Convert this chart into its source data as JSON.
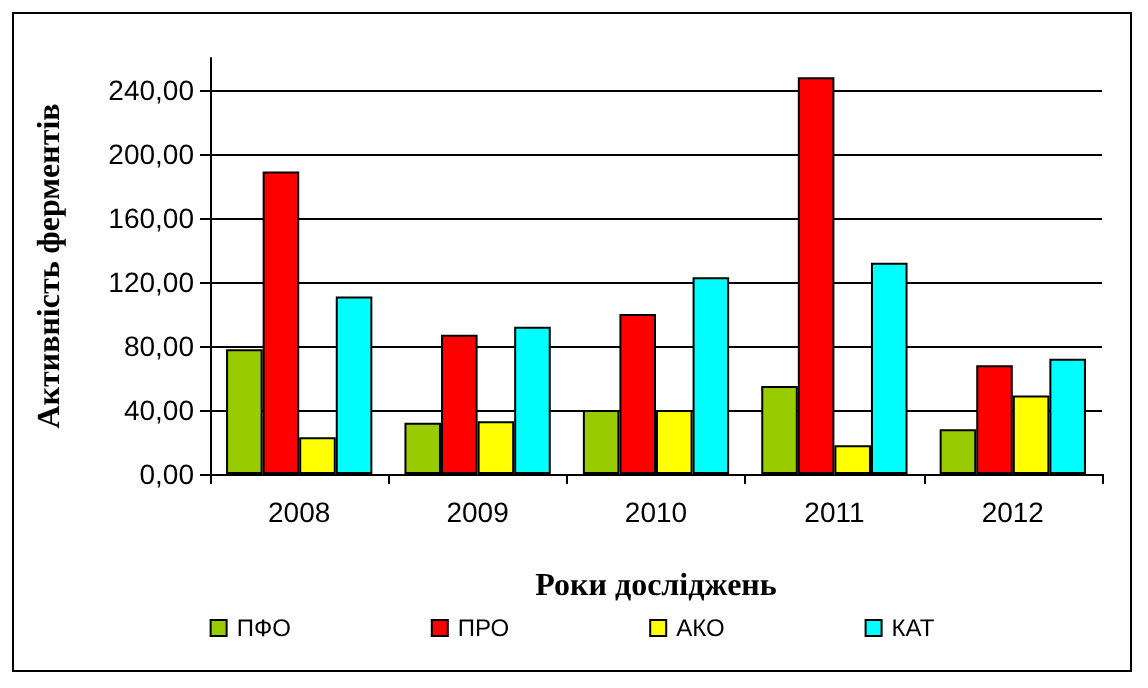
{
  "chart_data": {
    "type": "bar",
    "xlabel": "Роки досліджень",
    "ylabel": "Активність ферментів",
    "categories": [
      "2008",
      "2009",
      "2010",
      "2011",
      "2012"
    ],
    "series": [
      {
        "name": "ПФО",
        "color": "#99cc00",
        "values": [
          78,
          32,
          40,
          55,
          28
        ]
      },
      {
        "name": "ПРО",
        "color": "#ff0000",
        "values": [
          189,
          87,
          100,
          248,
          68
        ]
      },
      {
        "name": "АКО",
        "color": "#ffff00",
        "values": [
          23,
          33,
          40,
          18,
          49
        ]
      },
      {
        "name": "КАТ",
        "color": "#00ffff",
        "values": [
          111,
          92,
          123,
          132,
          72
        ]
      }
    ],
    "ylim": [
      0,
      260
    ],
    "yticks": [
      {
        "value": 0,
        "label": "0,00"
      },
      {
        "value": 40,
        "label": "40,00"
      },
      {
        "value": 80,
        "label": "80,00"
      },
      {
        "value": 120,
        "label": "120,00"
      },
      {
        "value": 160,
        "label": "160,00"
      },
      {
        "value": 200,
        "label": "200,00"
      },
      {
        "value": 240,
        "label": "240,00"
      }
    ],
    "grid": "y",
    "legend": "bottom"
  }
}
